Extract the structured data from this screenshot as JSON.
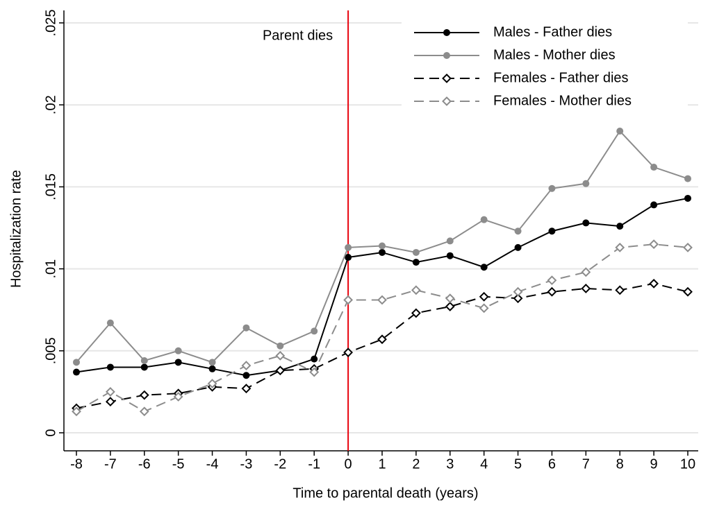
{
  "chart_data": {
    "type": "line",
    "x": [
      -8,
      -7,
      -6,
      -5,
      -4,
      -3,
      -2,
      -1,
      0,
      1,
      2,
      3,
      4,
      5,
      6,
      7,
      8,
      9,
      10
    ],
    "xlabel": "Time to parental death (years)",
    "ylabel": "Hospitalization rate",
    "xlim": [
      -8,
      10
    ],
    "xticks": [
      -8,
      -7,
      -6,
      -5,
      -4,
      -3,
      -2,
      -1,
      0,
      1,
      2,
      3,
      4,
      5,
      6,
      7,
      8,
      9,
      10
    ],
    "ylim": [
      0,
      0.025
    ],
    "yticks": [
      0,
      {
        "value": 0.005,
        "label": ".005"
      },
      {
        "value": 0.01,
        "label": ".01"
      },
      {
        "value": 0.015,
        "label": ".015"
      },
      {
        "value": 0.02,
        "label": ".02"
      },
      {
        "value": 0.025,
        "label": ".025"
      }
    ],
    "grid": true,
    "vline": 0,
    "vline_color": "#e8000b",
    "annotation": "Parent dies",
    "legend": "top-right",
    "series": [
      {
        "name": "Males - Father dies",
        "color": "#000000",
        "marker": "circle",
        "dash": false,
        "values": [
          0.0037,
          0.004,
          0.004,
          0.0043,
          0.0039,
          0.0035,
          0.0038,
          0.0045,
          0.0107,
          0.011,
          0.0104,
          0.0108,
          0.0101,
          0.0113,
          0.0123,
          0.0128,
          0.0126,
          0.0139,
          0.0143
        ]
      },
      {
        "name": "Males - Mother dies",
        "color": "#8c8c8c",
        "marker": "circle",
        "dash": false,
        "values": [
          0.0043,
          0.0067,
          0.0044,
          0.005,
          0.0043,
          0.0064,
          0.0053,
          0.0062,
          0.0113,
          0.0114,
          0.011,
          0.0117,
          0.013,
          0.0123,
          0.0149,
          0.0152,
          0.0184,
          0.0162,
          0.0155
        ]
      },
      {
        "name": "Females - Father dies",
        "color": "#000000",
        "marker": "diamond",
        "dash": true,
        "values": [
          0.0015,
          0.0019,
          0.0023,
          0.0024,
          0.0028,
          0.0027,
          0.0038,
          0.0039,
          0.0049,
          0.0057,
          0.0073,
          0.0077,
          0.0083,
          0.0082,
          0.0086,
          0.0088,
          0.0087,
          0.0091,
          0.0086
        ]
      },
      {
        "name": "Females - Mother dies",
        "color": "#8c8c8c",
        "marker": "diamond",
        "dash": true,
        "values": [
          0.0013,
          0.0025,
          0.0013,
          0.0022,
          0.003,
          0.0041,
          0.0047,
          0.0037,
          0.0081,
          0.0081,
          0.0087,
          0.0082,
          0.0076,
          0.0086,
          0.0093,
          0.0098,
          0.0113,
          0.0115,
          0.0113
        ]
      }
    ]
  }
}
